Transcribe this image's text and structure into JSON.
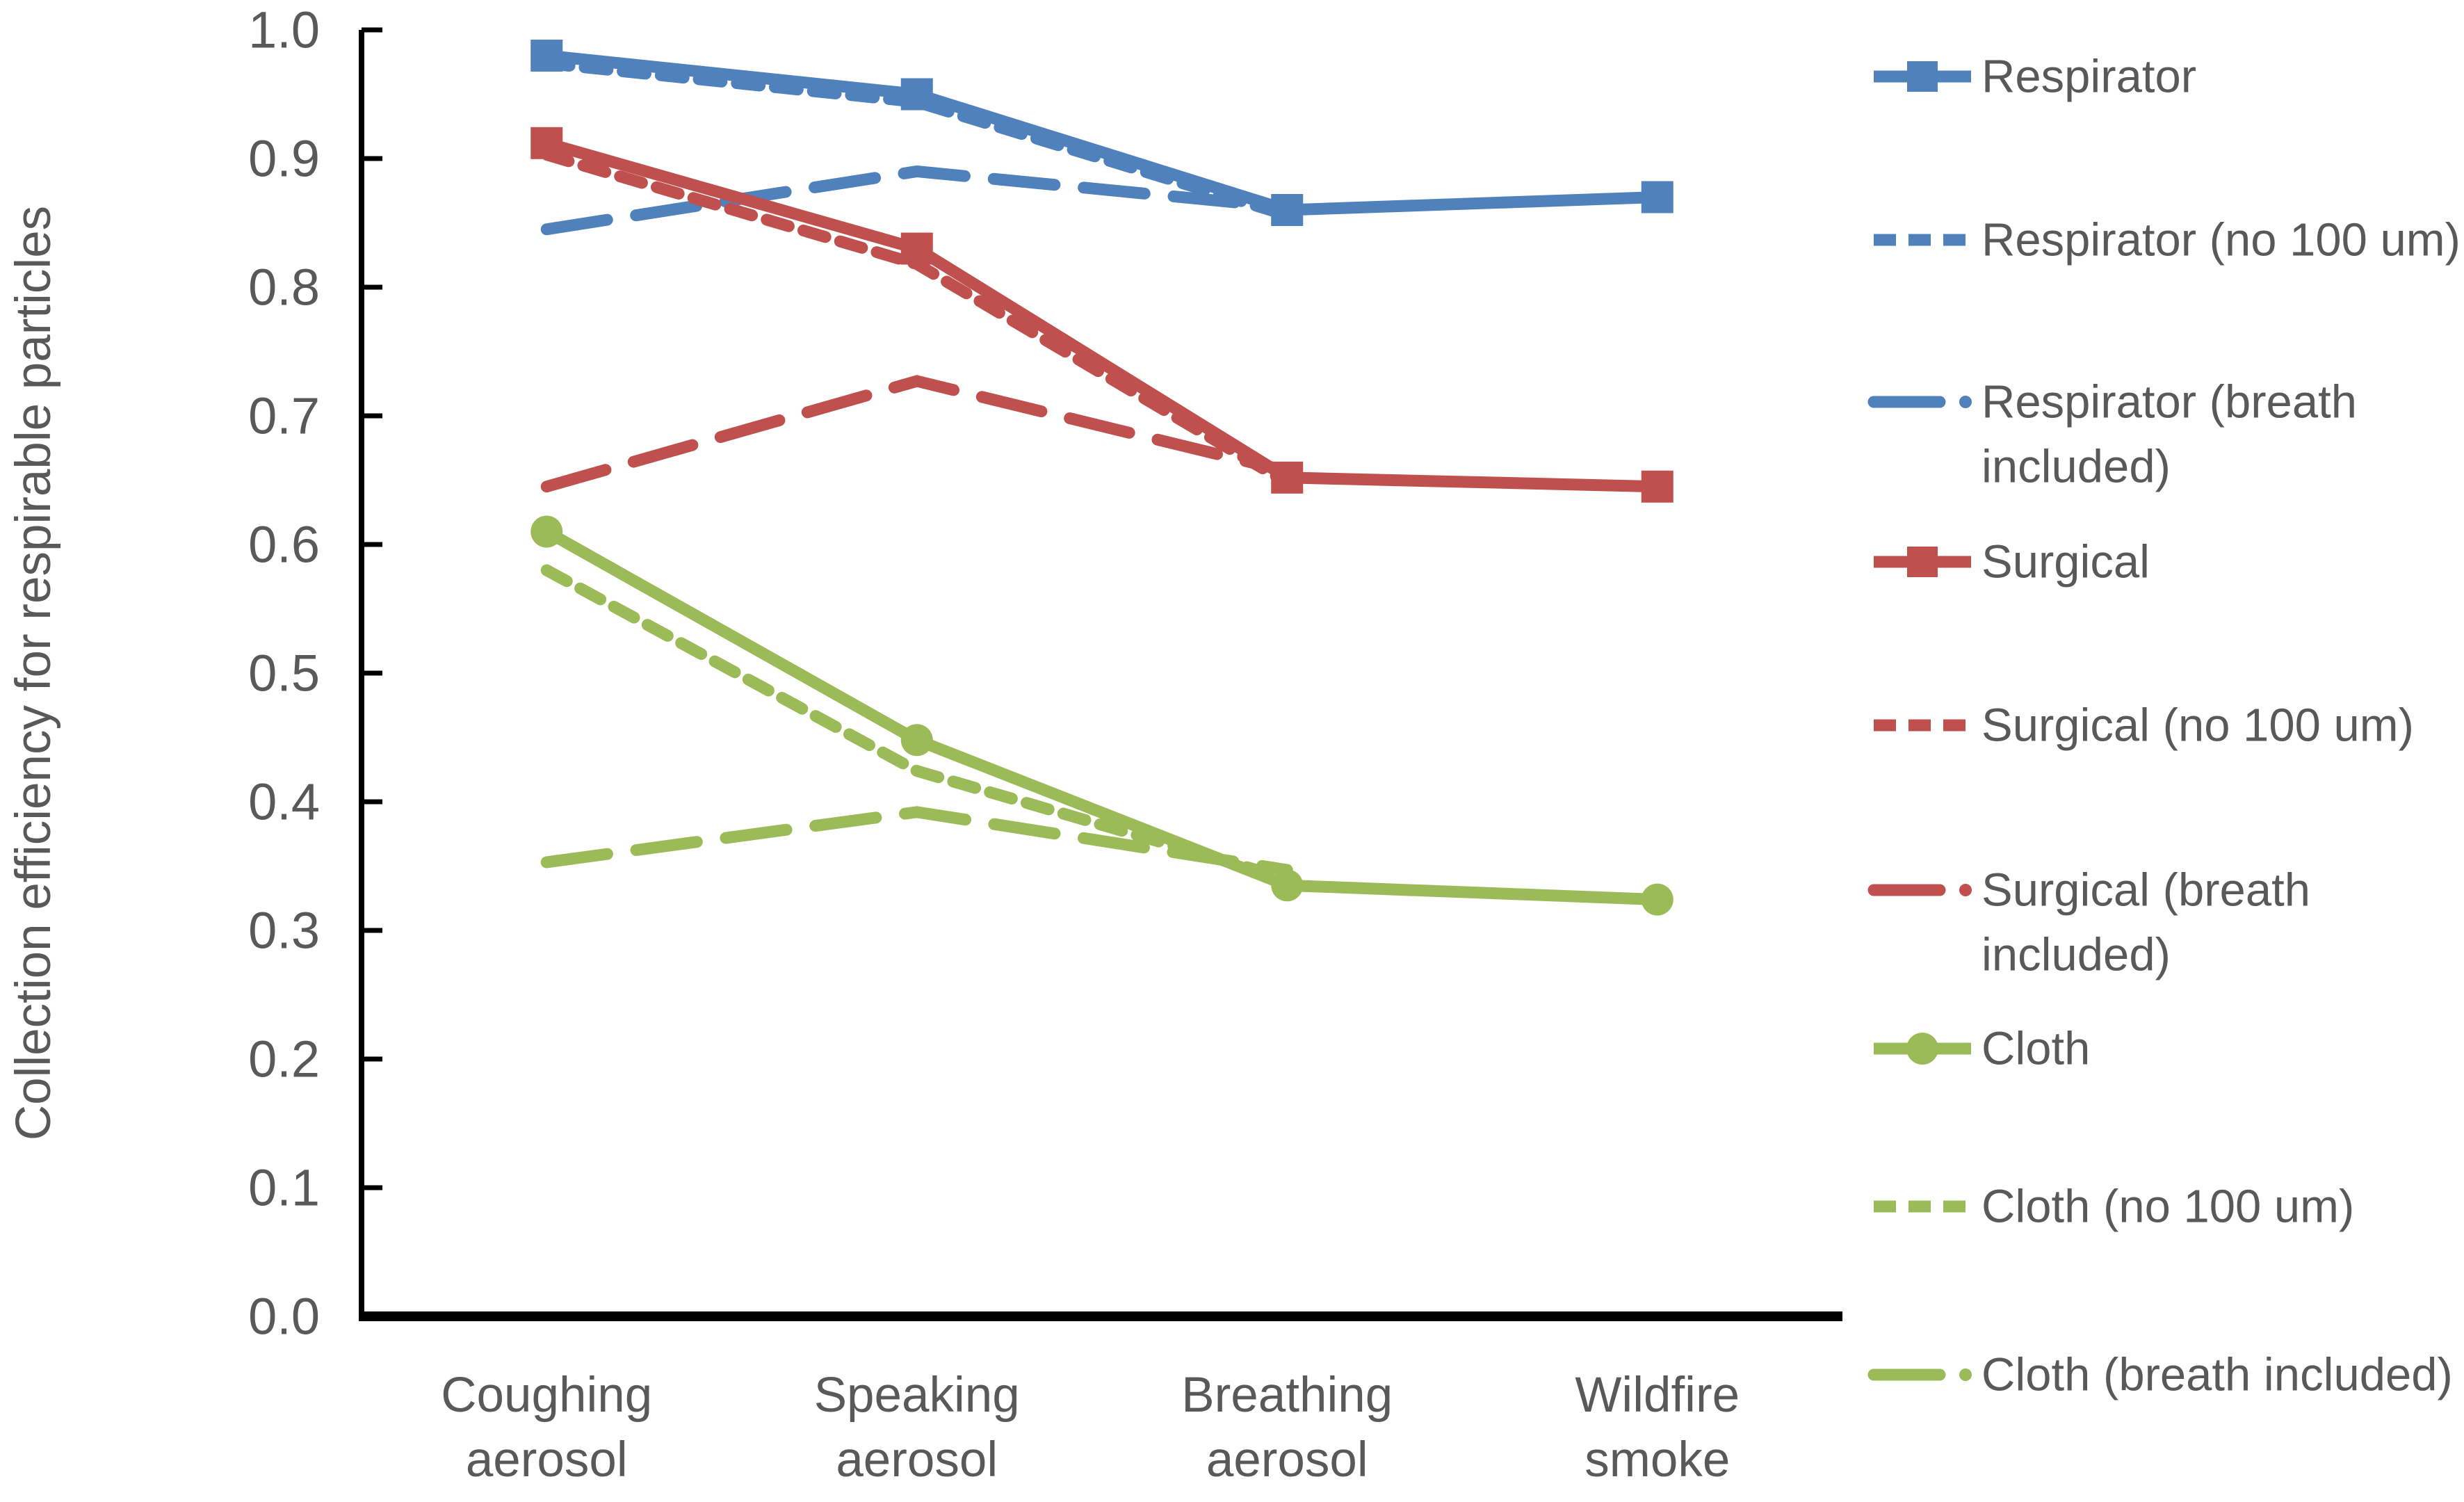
{
  "figure": {
    "background": "#FFFFFF",
    "text_color": "#595959",
    "axis_color": "#000000"
  },
  "chart_data": {
    "type": "line",
    "title": "",
    "xlabel": "",
    "ylabel": "Collection efficiency for respirable particles",
    "categories": [
      "Coughing aerosol",
      "Speaking aerosol",
      "Breathing aerosol",
      "Wildfire smoke"
    ],
    "category_label_lines": [
      [
        "Coughing",
        "aerosol"
      ],
      [
        "Speaking",
        "aerosol"
      ],
      [
        "Breathing",
        "aerosol"
      ],
      [
        "Wildfire",
        "smoke"
      ]
    ],
    "ylim": [
      0.0,
      1.0
    ],
    "yticks": [
      "0.0",
      "0.1",
      "0.2",
      "0.3",
      "0.4",
      "0.5",
      "0.6",
      "0.7",
      "0.8",
      "0.9",
      "1.0"
    ],
    "grid": false,
    "legend_position": "right",
    "series": [
      {
        "name": "Respirator",
        "legend_lines": [
          "Respirator"
        ],
        "color": "#4F81BD",
        "line_style": "solid",
        "marker": "square",
        "values": [
          0.98,
          0.95,
          0.86,
          0.87
        ]
      },
      {
        "name": "Respirator (no 100 um)",
        "legend_lines": [
          "Respirator (no 100 um)"
        ],
        "color": "#4F81BD",
        "line_style": "short-dash",
        "marker": "none",
        "values": [
          0.974,
          0.944,
          0.856,
          null
        ]
      },
      {
        "name": "Respirator (breath included)",
        "legend_lines": [
          "Respirator (breath",
          "included)"
        ],
        "color": "#4F81BD",
        "line_style": "long-dash",
        "marker": "none",
        "values": [
          0.845,
          0.89,
          0.862,
          null
        ]
      },
      {
        "name": "Surgical",
        "legend_lines": [
          "Surgical"
        ],
        "color": "#C0504D",
        "line_style": "solid",
        "marker": "square",
        "values": [
          0.912,
          0.83,
          0.652,
          0.645
        ]
      },
      {
        "name": "Surgical (no 100 um)",
        "legend_lines": [
          "Surgical (no 100 um)"
        ],
        "color": "#C0504D",
        "line_style": "short-dash",
        "marker": "none",
        "values": [
          0.903,
          0.818,
          0.648,
          null
        ]
      },
      {
        "name": "Surgical (breath included)",
        "legend_lines": [
          "Surgical (breath",
          "included)"
        ],
        "color": "#C0504D",
        "line_style": "long-dash",
        "marker": "none",
        "values": [
          0.645,
          0.727,
          0.657,
          null
        ]
      },
      {
        "name": "Cloth",
        "legend_lines": [
          "Cloth"
        ],
        "color": "#9BBB59",
        "line_style": "solid",
        "marker": "circle",
        "values": [
          0.61,
          0.448,
          0.335,
          0.324
        ]
      },
      {
        "name": "Cloth (no 100 um)",
        "legend_lines": [
          "Cloth (no 100 um)"
        ],
        "color": "#9BBB59",
        "line_style": "short-dash",
        "marker": "none",
        "values": [
          0.58,
          0.424,
          0.34,
          null
        ]
      },
      {
        "name": "Cloth (breath included)",
        "legend_lines": [
          "Cloth (breath included)"
        ],
        "color": "#9BBB59",
        "line_style": "long-dash",
        "marker": "none",
        "values": [
          0.353,
          0.392,
          0.347,
          null
        ]
      }
    ]
  }
}
